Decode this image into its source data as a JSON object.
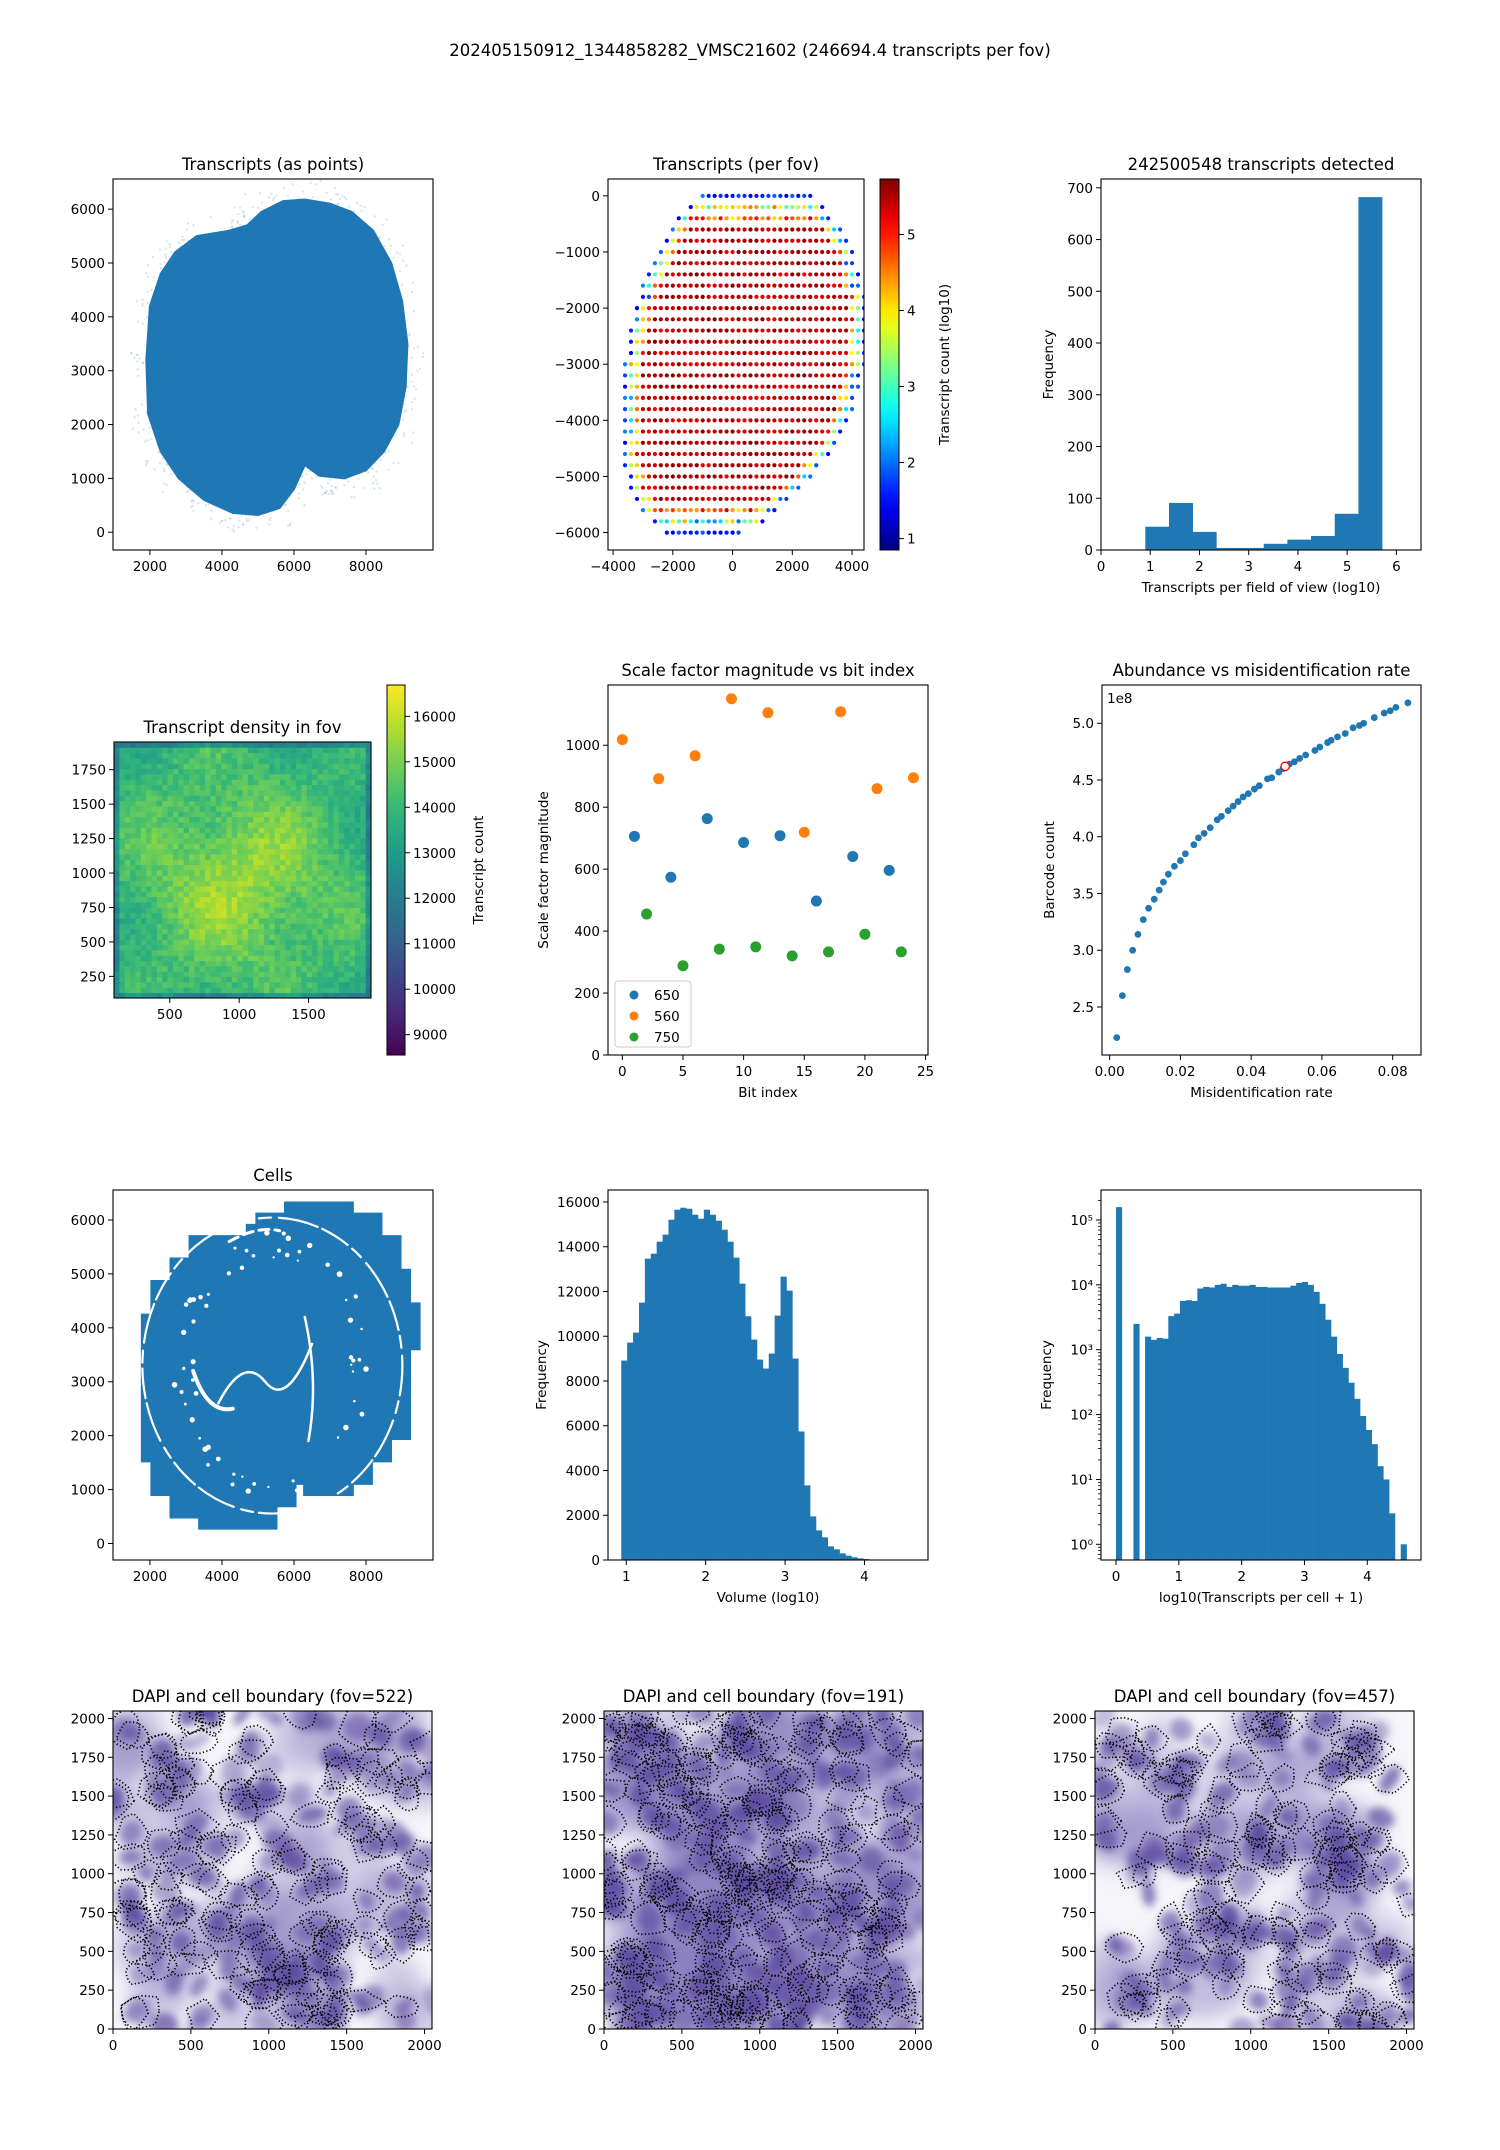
{
  "figure": {
    "suptitle": "202405150912_1344858282_VMSC21602 (246694.4 transcripts per fov)"
  },
  "chart_data": [
    {
      "type": "scatter",
      "title": "Transcripts (as points)",
      "color": "#1f77b4",
      "xlim": [
        975,
        9860
      ],
      "ylim": [
        -330,
        6560
      ],
      "xticks": [
        2000,
        4000,
        6000,
        8000
      ],
      "xtick_labels": [
        "2000",
        "4000",
        "6000",
        "8000"
      ],
      "yticks": [
        0,
        1000,
        2000,
        3000,
        4000,
        5000,
        6000
      ],
      "ytick_labels": [
        "0",
        "1000",
        "2000",
        "3000",
        "4000",
        "5000",
        "6000"
      ]
    },
    {
      "type": "scatter",
      "title": "Transcripts (per fov)",
      "xlim": [
        -4170,
        4400
      ],
      "ylim": [
        -6310,
        300
      ],
      "xticks": [
        -4000,
        -2000,
        0,
        2000,
        4000
      ],
      "xtick_labels": [
        "−4000",
        "−2000",
        "0",
        "2000",
        "4000"
      ],
      "yticks": [
        0,
        -1000,
        -2000,
        -3000,
        -4000,
        -5000,
        -6000
      ],
      "ytick_labels": [
        "0",
        "−1000",
        "−2000",
        "−3000",
        "−4000",
        "−5000",
        "−6000"
      ],
      "colorbar": {
        "label": "Transcript count (log10)",
        "colormap": "jet",
        "range": [
          0.85,
          5.73
        ],
        "ticks": [
          1,
          2,
          3,
          4,
          5
        ],
        "tick_labels": [
          "1",
          "2",
          "3",
          "4",
          "5"
        ]
      }
    },
    {
      "type": "bar",
      "title": "242500548 transcripts detected",
      "xlabel": "Transcripts per field of view (log10)",
      "ylabel": "Frequency",
      "color": "#1f77b4",
      "bin_start": 0.9,
      "bin_width": 0.481,
      "values": [
        45,
        91,
        35,
        4,
        4,
        12,
        20,
        27,
        70,
        682
      ],
      "xlim": [
        0,
        6.5
      ],
      "ylim": [
        0,
        717
      ],
      "xticks": [
        0,
        1,
        2,
        3,
        4,
        5,
        6
      ],
      "xtick_labels": [
        "0",
        "1",
        "2",
        "3",
        "4",
        "5",
        "6"
      ],
      "yticks": [
        0,
        100,
        200,
        300,
        400,
        500,
        600,
        700
      ],
      "ytick_labels": [
        "0",
        "100",
        "200",
        "300",
        "400",
        "500",
        "600",
        "700"
      ]
    },
    {
      "type": "heatmap",
      "title": "Transcript density in fov",
      "xlim": [
        98,
        1950
      ],
      "ylim": [
        93,
        1951
      ],
      "xticks": [
        500,
        1000,
        1500
      ],
      "xtick_labels": [
        "500",
        "1000",
        "1500"
      ],
      "yticks": [
        250,
        500,
        750,
        1000,
        1250,
        1500,
        1750
      ],
      "ytick_labels": [
        "250",
        "500",
        "750",
        "1000",
        "1250",
        "1500",
        "1750"
      ],
      "colorbar": {
        "label": "Transcript count",
        "colormap": "viridis",
        "range": [
          8553,
          16689
        ],
        "ticks": [
          9000,
          10000,
          11000,
          12000,
          13000,
          14000,
          15000,
          16000
        ],
        "tick_labels": [
          "9000",
          "10000",
          "11000",
          "12000",
          "13000",
          "14000",
          "15000",
          "16000"
        ]
      }
    },
    {
      "type": "scatter",
      "title": "Scale factor magnitude vs bit index",
      "xlabel": "Bit index",
      "ylabel": "Scale factor magnitude",
      "xlim": [
        -1.18,
        25.2
      ],
      "ylim": [
        0,
        1194.5
      ],
      "xticks": [
        0,
        5,
        10,
        15,
        20,
        25
      ],
      "xtick_labels": [
        "0",
        "5",
        "10",
        "15",
        "20",
        "25"
      ],
      "yticks": [
        0,
        200,
        400,
        600,
        800,
        1000
      ],
      "ytick_labels": [
        "0",
        "200",
        "400",
        "600",
        "800",
        "1000"
      ],
      "legend": "lower-left",
      "series": [
        {
          "name": "650",
          "color": "#1f77b4",
          "x": [
            1,
            4,
            7,
            10,
            13,
            16,
            19,
            22
          ],
          "y": [
            706,
            574,
            763,
            686,
            708,
            497,
            641,
            596
          ]
        },
        {
          "name": "560",
          "color": "#ff7f0e",
          "x": [
            0,
            3,
            6,
            9,
            12,
            15,
            18,
            21,
            24
          ],
          "y": [
            1018,
            892,
            966,
            1150,
            1105,
            719,
            1108,
            860,
            895
          ]
        },
        {
          "name": "750",
          "color": "#2ca02c",
          "x": [
            2,
            5,
            8,
            11,
            14,
            17,
            20,
            23
          ],
          "y": [
            455,
            288,
            342,
            349,
            320,
            333,
            390,
            333
          ]
        }
      ]
    },
    {
      "type": "scatter",
      "title": "Abundance vs misidentification rate",
      "xlabel": "Misidentification rate",
      "ylabel": "Barcode count",
      "offset_label": "1e8",
      "color": "#1f77b4",
      "xlim": [
        -0.00216,
        0.088
      ],
      "ylim": [
        2.077,
        5.337
      ],
      "xticks": [
        0,
        0.02,
        0.04,
        0.06,
        0.08
      ],
      "xtick_labels": [
        "0.00",
        "0.02",
        "0.04",
        "0.06",
        "0.08"
      ],
      "yticks": [
        2.5,
        3.0,
        3.5,
        4.0,
        4.5,
        5.0
      ],
      "ytick_labels": [
        "2.5",
        "3.0",
        "3.5",
        "4.0",
        "4.5",
        "5.0"
      ],
      "x": [
        0.002,
        0.0036,
        0.005,
        0.0065,
        0.008,
        0.0095,
        0.011,
        0.0126,
        0.014,
        0.0152,
        0.0166,
        0.0183,
        0.02,
        0.0214,
        0.0238,
        0.0251,
        0.0267,
        0.0284,
        0.0304,
        0.0316,
        0.0335,
        0.0349,
        0.0363,
        0.0377,
        0.0392,
        0.0409,
        0.0423,
        0.0446,
        0.0458,
        0.0478,
        0.049,
        0.0508,
        0.0522,
        0.0537,
        0.0554,
        0.058,
        0.0594,
        0.0616,
        0.0626,
        0.0644,
        0.0666,
        0.0688,
        0.0706,
        0.0718,
        0.0748,
        0.0776,
        0.0793,
        0.0809,
        0.0843
      ],
      "y": [
        2.23,
        2.6,
        2.83,
        3.0,
        3.14,
        3.27,
        3.37,
        3.45,
        3.53,
        3.6,
        3.67,
        3.74,
        3.79,
        3.85,
        3.93,
        3.99,
        4.03,
        4.08,
        4.15,
        4.18,
        4.23,
        4.27,
        4.31,
        4.35,
        4.38,
        4.42,
        4.45,
        4.51,
        4.52,
        4.57,
        4.6,
        4.64,
        4.66,
        4.69,
        4.72,
        4.76,
        4.79,
        4.83,
        4.85,
        4.88,
        4.91,
        4.96,
        4.98,
        5.0,
        5.05,
        5.09,
        5.11,
        5.14,
        5.18
      ],
      "highlight": {
        "x": 0.0496,
        "y": 4.62,
        "color": "#ff0000"
      }
    },
    {
      "type": "scatter",
      "title": "Cells",
      "color": "#1f77b4",
      "xlim": [
        975,
        9860
      ],
      "ylim": [
        -306,
        6556
      ],
      "xticks": [
        2000,
        4000,
        6000,
        8000
      ],
      "xtick_labels": [
        "2000",
        "4000",
        "6000",
        "8000"
      ],
      "yticks": [
        0,
        1000,
        2000,
        3000,
        4000,
        5000,
        6000
      ],
      "ytick_labels": [
        "0",
        "1000",
        "2000",
        "3000",
        "4000",
        "5000",
        "6000"
      ]
    },
    {
      "type": "bar",
      "title": "",
      "xlabel": "Volume (log10)",
      "ylabel": "Frequency",
      "color": "#1f77b4",
      "bin_start": 0.937,
      "bin_width": 0.0743,
      "values": [
        8914,
        9717,
        10164,
        11503,
        13467,
        13690,
        14226,
        14539,
        15208,
        15655,
        15744,
        15699,
        15432,
        15253,
        15655,
        15432,
        15164,
        14762,
        14226,
        13512,
        12351,
        10893,
        9851,
        8958,
        8557,
        9226,
        10923,
        12664,
        12039,
        9003,
        5744,
        3333,
        1949,
        1324,
        1012,
        610,
        476,
        298,
        193,
        119,
        74,
        45
      ],
      "xlim": [
        0.77,
        4.8
      ],
      "ylim": [
        0,
        16536
      ],
      "xticks": [
        1,
        2,
        3,
        4
      ],
      "xtick_labels": [
        "1",
        "2",
        "3",
        "4"
      ],
      "yticks": [
        0,
        2000,
        4000,
        6000,
        8000,
        10000,
        12000,
        14000,
        16000
      ],
      "ytick_labels": [
        "0",
        "2000",
        "4000",
        "6000",
        "8000",
        "10000",
        "12000",
        "14000",
        "16000"
      ]
    },
    {
      "type": "bar",
      "title": "",
      "xlabel": "log10(Transcripts per cell + 1)",
      "ylabel": "Frequency",
      "yscale": "log",
      "color": "#1f77b4",
      "bin_start": 0,
      "bin_width": 0.0925,
      "values": [
        158000,
        0,
        0,
        2500,
        0,
        1590,
        1420,
        1520,
        1480,
        3300,
        3600,
        5650,
        5800,
        5650,
        8800,
        9300,
        9100,
        10000,
        10400,
        9300,
        10000,
        9700,
        9700,
        10000,
        9300,
        9300,
        9100,
        9100,
        9100,
        9100,
        9700,
        10700,
        11100,
        10000,
        7800,
        5100,
        2900,
        1590,
        860,
        525,
        310,
        175,
        95,
        58,
        35,
        16,
        10,
        3,
        0,
        1
      ],
      "xlim": [
        -0.239,
        4.855
      ],
      "ylim": [
        0.573,
        290000
      ],
      "xticks": [
        0,
        1,
        2,
        3,
        4
      ],
      "xtick_labels": [
        "0",
        "1",
        "2",
        "3",
        "4"
      ],
      "yticks": [
        1,
        10,
        100,
        1000,
        10000,
        100000
      ],
      "ytick_labels": [
        "10⁰",
        "10¹",
        "10²",
        "10³",
        "10⁴",
        "10⁵"
      ]
    },
    {
      "type": "image",
      "title": "DAPI and cell boundary (fov=522)",
      "xlim": [
        0,
        2048
      ],
      "ylim": [
        0,
        2048
      ],
      "xticks": [
        0,
        500,
        1000,
        1500,
        2000
      ],
      "xtick_labels": [
        "0",
        "500",
        "1000",
        "1500",
        "2000"
      ],
      "yticks": [
        0,
        250,
        500,
        750,
        1000,
        1250,
        1500,
        1750,
        2000
      ],
      "ytick_labels": [
        "0",
        "250",
        "500",
        "750",
        "1000",
        "1250",
        "1500",
        "1750",
        "2000"
      ]
    },
    {
      "type": "image",
      "title": "DAPI and cell boundary (fov=191)",
      "xlim": [
        0,
        2048
      ],
      "ylim": [
        0,
        2048
      ],
      "xticks": [
        0,
        500,
        1000,
        1500,
        2000
      ],
      "xtick_labels": [
        "0",
        "500",
        "1000",
        "1500",
        "2000"
      ],
      "yticks": [
        0,
        250,
        500,
        750,
        1000,
        1250,
        1500,
        1750,
        2000
      ],
      "ytick_labels": [
        "0",
        "250",
        "500",
        "750",
        "1000",
        "1250",
        "1500",
        "1750",
        "2000"
      ]
    },
    {
      "type": "image",
      "title": "DAPI and cell boundary (fov=457)",
      "xlim": [
        0,
        2048
      ],
      "ylim": [
        0,
        2048
      ],
      "xticks": [
        0,
        500,
        1000,
        1500,
        2000
      ],
      "xtick_labels": [
        "0",
        "500",
        "1000",
        "1500",
        "2000"
      ],
      "yticks": [
        0,
        250,
        500,
        750,
        1000,
        1250,
        1500,
        1750,
        2000
      ],
      "ytick_labels": [
        "0",
        "250",
        "500",
        "750",
        "1000",
        "1250",
        "1500",
        "1750",
        "2000"
      ]
    }
  ]
}
